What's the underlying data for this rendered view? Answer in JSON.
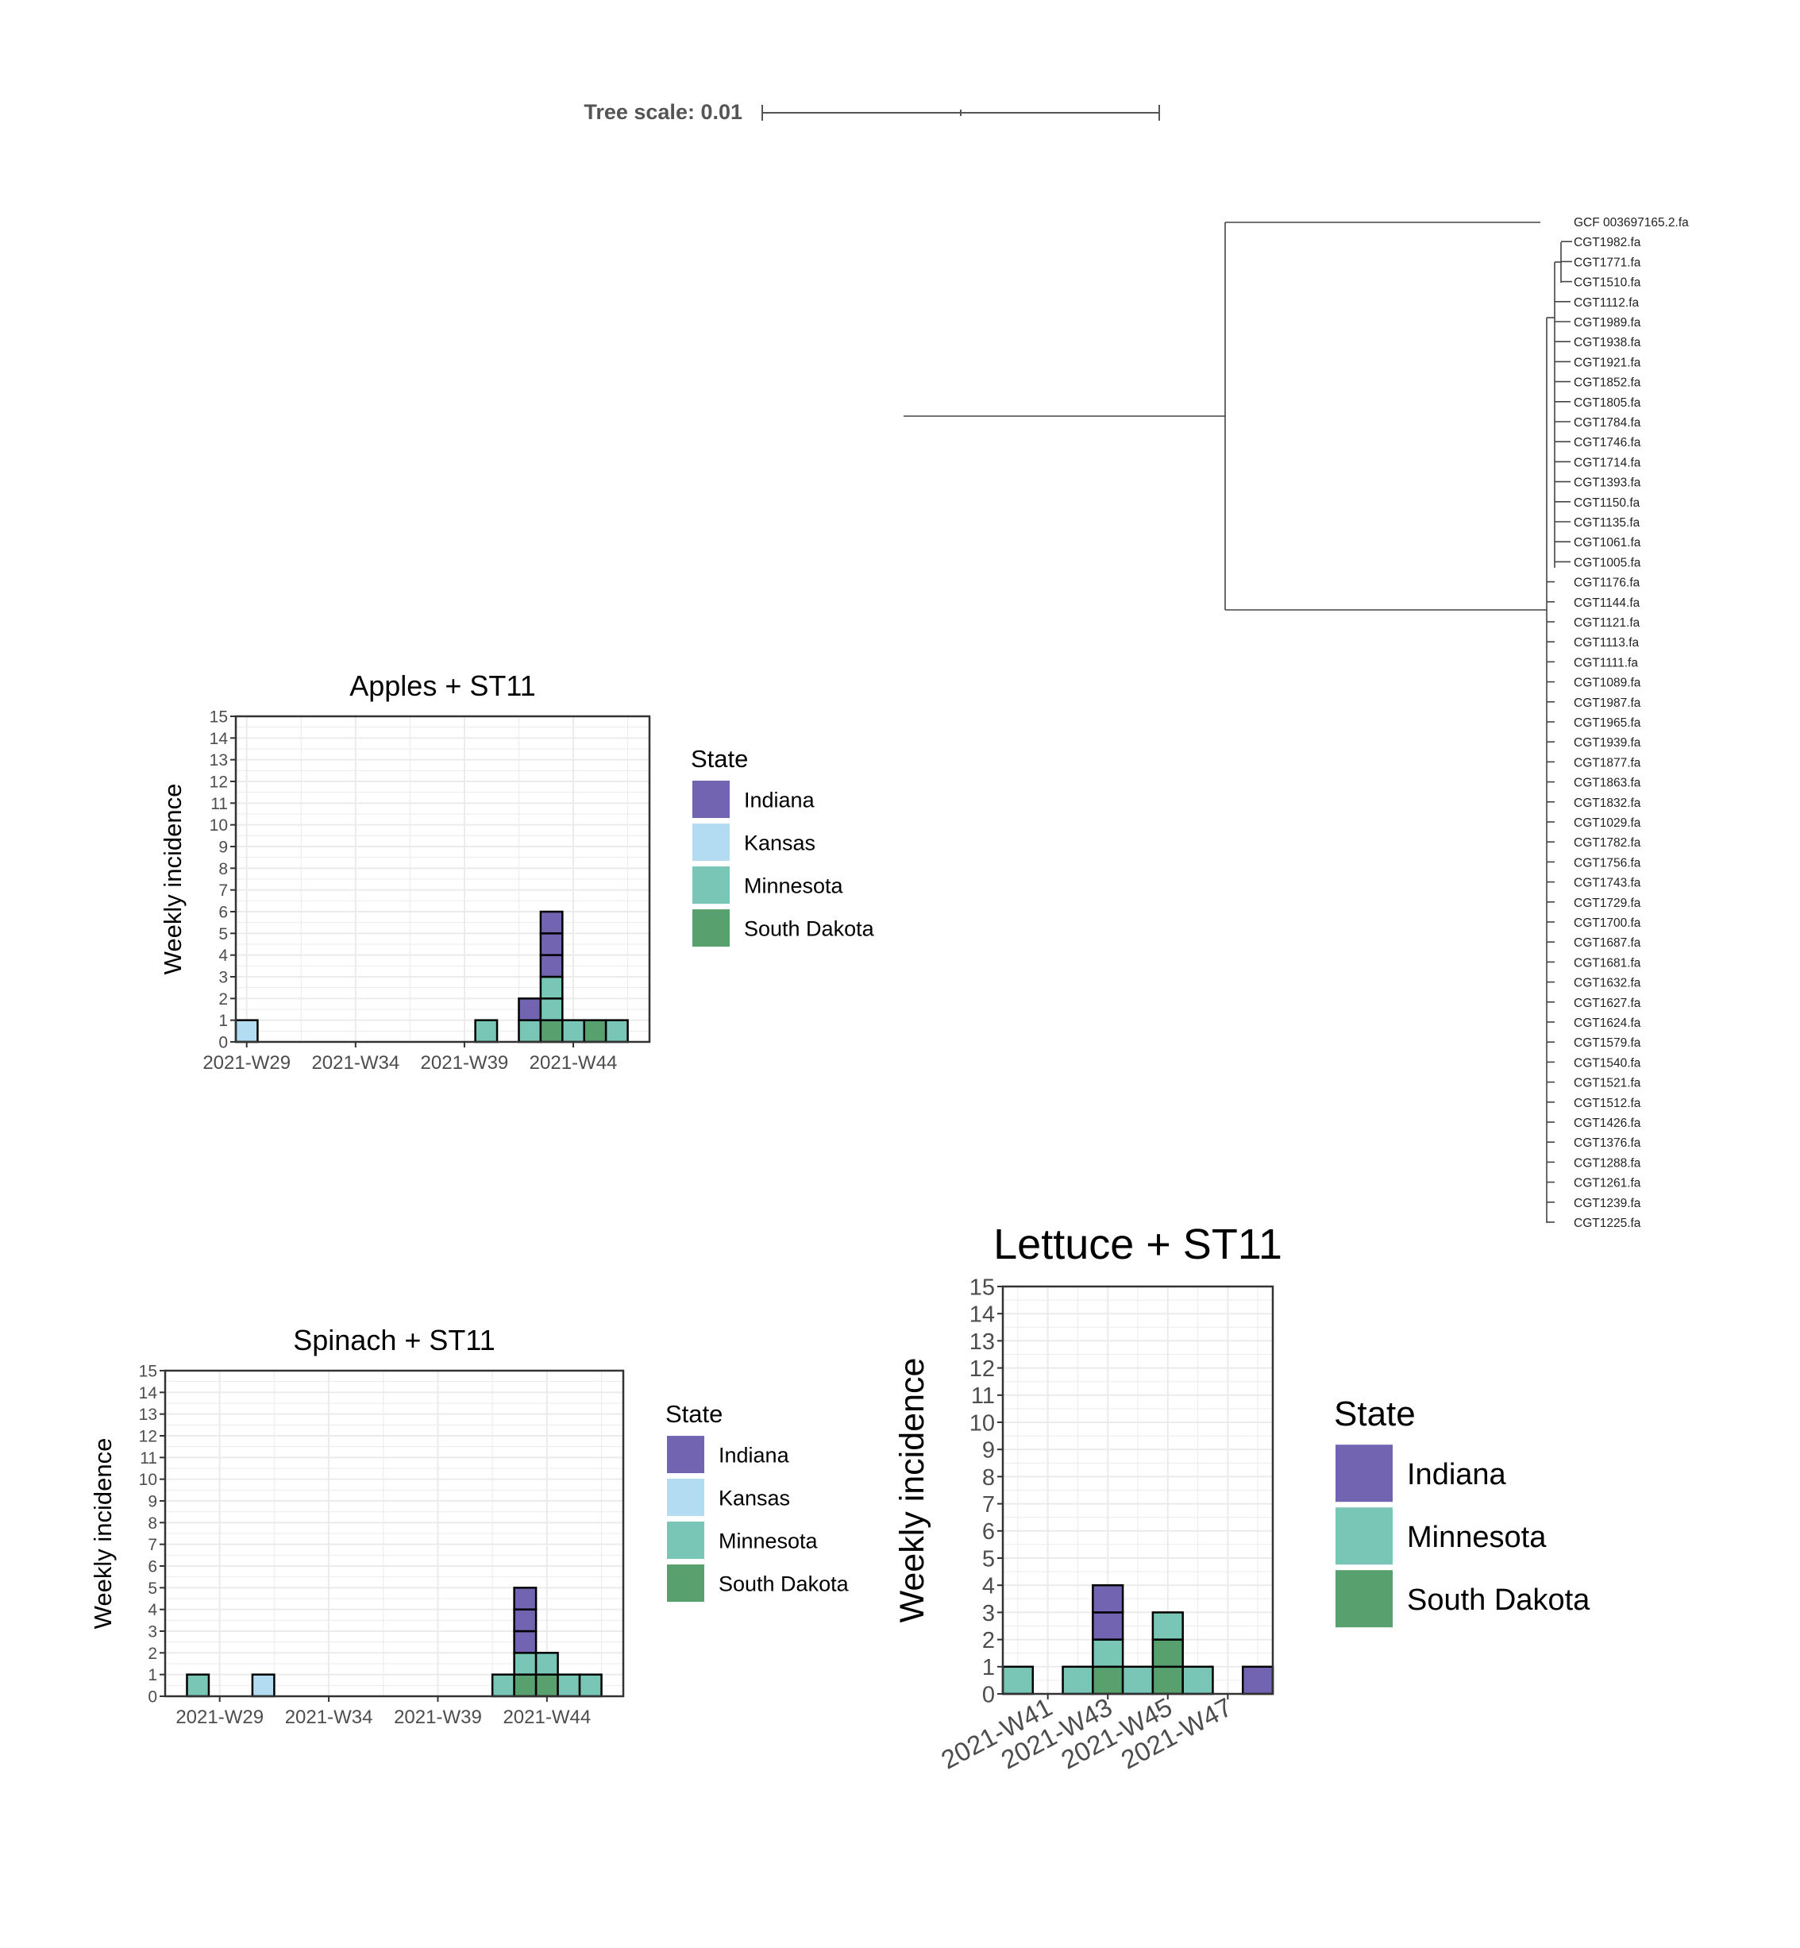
{
  "tree": {
    "scale_label": "Tree scale: 0.01",
    "leaves": [
      "GCF 003697165.2.fa",
      "CGT1982.fa",
      "CGT1771.fa",
      "CGT1510.fa",
      "CGT1112.fa",
      "CGT1989.fa",
      "CGT1938.fa",
      "CGT1921.fa",
      "CGT1852.fa",
      "CGT1805.fa",
      "CGT1784.fa",
      "CGT1746.fa",
      "CGT1714.fa",
      "CGT1393.fa",
      "CGT1150.fa",
      "CGT1135.fa",
      "CGT1061.fa",
      "CGT1005.fa",
      "CGT1176.fa",
      "CGT1144.fa",
      "CGT1121.fa",
      "CGT1113.fa",
      "CGT1111.fa",
      "CGT1089.fa",
      "CGT1987.fa",
      "CGT1965.fa",
      "CGT1939.fa",
      "CGT1877.fa",
      "CGT1863.fa",
      "CGT1832.fa",
      "CGT1029.fa",
      "CGT1782.fa",
      "CGT1756.fa",
      "CGT1743.fa",
      "CGT1729.fa",
      "CGT1700.fa",
      "CGT1687.fa",
      "CGT1681.fa",
      "CGT1632.fa",
      "CGT1627.fa",
      "CGT1624.fa",
      "CGT1579.fa",
      "CGT1540.fa",
      "CGT1521.fa",
      "CGT1512.fa",
      "CGT1426.fa",
      "CGT1376.fa",
      "CGT1288.fa",
      "CGT1261.fa",
      "CGT1239.fa",
      "CGT1225.fa"
    ]
  },
  "colors": {
    "Indiana": "#7264b0",
    "Kansas": "#b3dcf2",
    "Minnesota": "#7ac6b6",
    "South Dakota": "#58a06e",
    "grid": "#ebebeb",
    "axis_text": "#4d4d4d"
  },
  "chart_data": [
    {
      "type": "bar",
      "title": "Apples + ST11",
      "ylabel": "Weekly incidence",
      "xlabel": "",
      "ylim": [
        0,
        15
      ],
      "yticks": [
        "0",
        "1",
        "2",
        "3",
        "4",
        "5",
        "6",
        "7",
        "8",
        "9",
        "10",
        "11",
        "12",
        "13",
        "14",
        "15"
      ],
      "xlim": [
        28.5,
        47.5
      ],
      "xtick_labels": [
        "2021-W29",
        "2021-W34",
        "2021-W39",
        "2021-W44"
      ],
      "xtick_weeks": [
        29,
        34,
        39,
        44
      ],
      "legend_title": "State",
      "legend": [
        "Indiana",
        "Kansas",
        "Minnesota",
        "South Dakota"
      ],
      "legend_position": "right",
      "bars": [
        {
          "week": 29,
          "stack": [
            "Kansas"
          ]
        },
        {
          "week": 40,
          "stack": [
            "Minnesota"
          ]
        },
        {
          "week": 42,
          "stack": [
            "Minnesota",
            "Indiana"
          ]
        },
        {
          "week": 43,
          "stack": [
            "South Dakota",
            "Minnesota",
            "Minnesota",
            "Indiana",
            "Indiana",
            "Indiana"
          ]
        },
        {
          "week": 44,
          "stack": [
            "Minnesota"
          ]
        },
        {
          "week": 45,
          "stack": [
            "South Dakota"
          ]
        },
        {
          "week": 46,
          "stack": [
            "Minnesota"
          ]
        }
      ]
    },
    {
      "type": "bar",
      "title": "Spinach + ST11",
      "ylabel": "Weekly incidence",
      "xlabel": "",
      "ylim": [
        0,
        15
      ],
      "yticks": [
        "0",
        "1",
        "2",
        "3",
        "4",
        "5",
        "6",
        "7",
        "8",
        "9",
        "10",
        "11",
        "12",
        "13",
        "14",
        "15"
      ],
      "xlim": [
        26.5,
        47.5
      ],
      "xtick_labels": [
        "2021-W29",
        "2021-W34",
        "2021-W39",
        "2021-W44"
      ],
      "xtick_weeks": [
        29,
        34,
        39,
        44
      ],
      "legend_title": "State",
      "legend": [
        "Indiana",
        "Kansas",
        "Minnesota",
        "South Dakota"
      ],
      "legend_position": "right",
      "bars": [
        {
          "week": 28,
          "stack": [
            "Minnesota"
          ]
        },
        {
          "week": 31,
          "stack": [
            "Kansas"
          ]
        },
        {
          "week": 42,
          "stack": [
            "Minnesota"
          ]
        },
        {
          "week": 43,
          "stack": [
            "South Dakota",
            "Minnesota",
            "Indiana",
            "Indiana",
            "Indiana"
          ]
        },
        {
          "week": 44,
          "stack": [
            "South Dakota",
            "Minnesota"
          ]
        },
        {
          "week": 45,
          "stack": [
            "Minnesota"
          ]
        },
        {
          "week": 46,
          "stack": [
            "Minnesota"
          ]
        }
      ]
    },
    {
      "type": "bar",
      "title": "Lettuce + ST11",
      "ylabel": "Weekly incidence",
      "xlabel": "",
      "ylim": [
        0,
        15
      ],
      "yticks": [
        "0",
        "1",
        "2",
        "3",
        "4",
        "5",
        "6",
        "7",
        "8",
        "9",
        "10",
        "11",
        "12",
        "13",
        "14",
        "15"
      ],
      "xlim": [
        39.5,
        48.5
      ],
      "xtick_labels": [
        "2021-W41",
        "2021-W43",
        "2021-W45",
        "2021-W47"
      ],
      "xtick_weeks": [
        41,
        43,
        45,
        47
      ],
      "legend_title": "State",
      "legend": [
        "Indiana",
        "Minnesota",
        "South Dakota"
      ],
      "legend_position": "right",
      "bars": [
        {
          "week": 40,
          "stack": [
            "Minnesota"
          ]
        },
        {
          "week": 42,
          "stack": [
            "Minnesota"
          ]
        },
        {
          "week": 43,
          "stack": [
            "South Dakota",
            "Minnesota",
            "Indiana",
            "Indiana"
          ]
        },
        {
          "week": 44,
          "stack": [
            "Minnesota"
          ]
        },
        {
          "week": 45,
          "stack": [
            "South Dakota",
            "South Dakota",
            "Minnesota"
          ]
        },
        {
          "week": 46,
          "stack": [
            "Minnesota"
          ]
        },
        {
          "week": 48,
          "stack": [
            "Indiana"
          ]
        }
      ]
    }
  ]
}
